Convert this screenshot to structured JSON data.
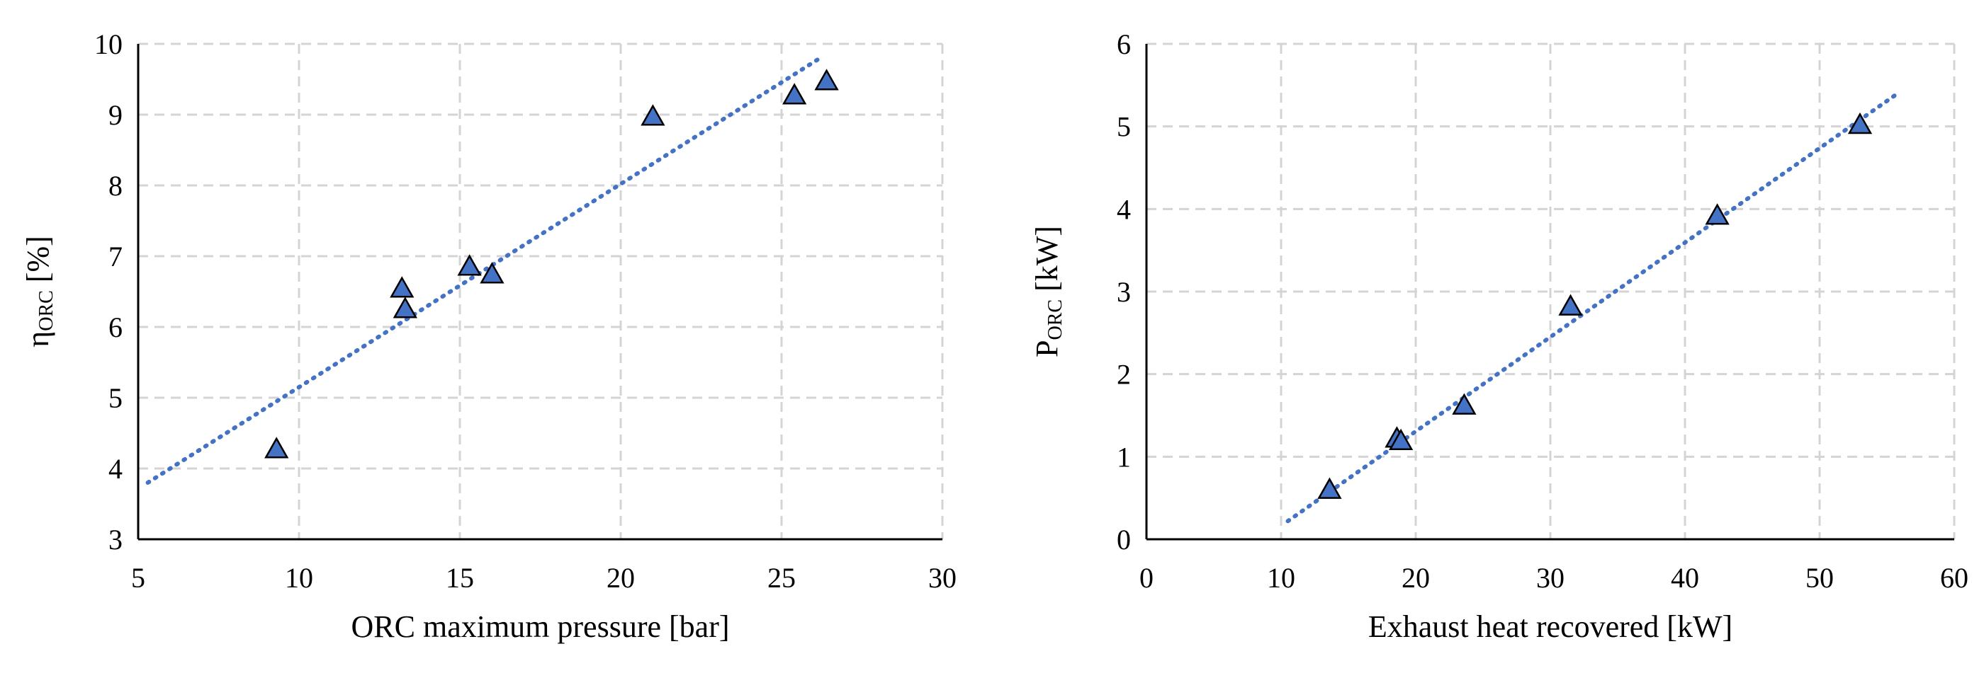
{
  "colors": {
    "marker_fill": "#4472C4",
    "trend_line": "#4472C4",
    "grid": "#d4d4d4"
  },
  "chart_data": [
    {
      "type": "scatter",
      "marker": "triangle",
      "grid": true,
      "xlabel": "ORC maximum pressure [bar]",
      "ylabel": {
        "main": "η",
        "sub": "ORC",
        "unit": " [%]"
      },
      "xlim": [
        5,
        30
      ],
      "ylim": [
        3,
        10
      ],
      "xticks": [
        5,
        10,
        15,
        20,
        25,
        30
      ],
      "yticks": [
        3,
        4,
        5,
        6,
        7,
        8,
        9,
        10
      ],
      "points": [
        {
          "x": 9.3,
          "y": 4.25
        },
        {
          "x": 13.2,
          "y": 6.52
        },
        {
          "x": 13.3,
          "y": 6.23
        },
        {
          "x": 15.3,
          "y": 6.83
        },
        {
          "x": 16.0,
          "y": 6.72
        },
        {
          "x": 21.0,
          "y": 8.95
        },
        {
          "x": 25.4,
          "y": 9.25
        },
        {
          "x": 26.4,
          "y": 9.45
        }
      ],
      "trendline": {
        "type": "linear",
        "x": [
          5.3,
          26.2
        ],
        "y": [
          3.8,
          9.8
        ]
      }
    },
    {
      "type": "scatter",
      "marker": "triangle",
      "grid": true,
      "xlabel": "Exhaust heat recovered [kW]",
      "ylabel": {
        "main": "P",
        "sub": "ORC",
        "unit": " [kW]"
      },
      "xlim": [
        0,
        60
      ],
      "ylim": [
        0,
        6
      ],
      "xticks": [
        0,
        10,
        20,
        30,
        40,
        50,
        60
      ],
      "yticks": [
        0,
        1,
        2,
        3,
        4,
        5,
        6
      ],
      "points": [
        {
          "x": 13.6,
          "y": 0.58
        },
        {
          "x": 18.6,
          "y": 1.2
        },
        {
          "x": 18.9,
          "y": 1.17
        },
        {
          "x": 23.6,
          "y": 1.6
        },
        {
          "x": 31.5,
          "y": 2.8
        },
        {
          "x": 42.4,
          "y": 3.9
        },
        {
          "x": 53.0,
          "y": 5.0
        }
      ],
      "trendline": {
        "type": "linear",
        "x": [
          10.5,
          55.8
        ],
        "y": [
          0.22,
          5.4
        ]
      }
    }
  ]
}
